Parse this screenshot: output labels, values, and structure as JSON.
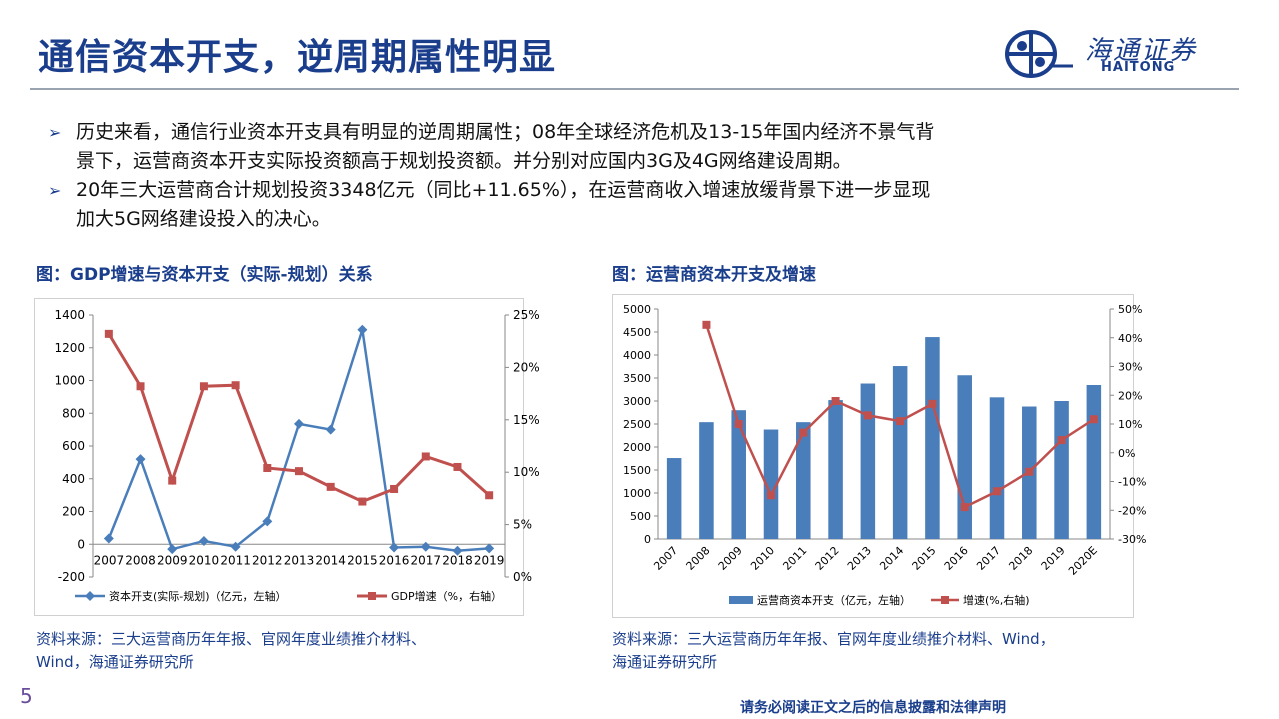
{
  "header": {
    "title": "通信资本开支，逆周期属性明显",
    "logo_cn": "海通证券",
    "logo_en": "HAITONG"
  },
  "bullets": [
    {
      "line1": "历史来看，通信行业资本开支具有明显的逆周期属性；08年全球经济危机及13-15年国内经济不景气背",
      "line2": "景下，运营商资本开支实际投资额高于规划投资额。并分别对应国内3G及4G网络建设周期。"
    },
    {
      "line1": "20年三大运营商合计规划投资3348亿元（同比+11.65%），在运营商收入增速放缓背景下进一步显现",
      "line2": "加大5G网络建设投入的决心。"
    }
  ],
  "figure_left": {
    "title": "图：GDP增速与资本开支（实际-规划）关系",
    "source_line1": "资料来源：三大运营商历年年报、官网年度业绩推介材料、",
    "source_line2": "Wind，海通证券研究所"
  },
  "figure_right": {
    "title": "图：运营商资本开支及增速",
    "source_line1": "资料来源：三大运营商历年年报、官网年度业绩推介材料、Wind，",
    "source_line2": "海通证券研究所"
  },
  "footer": {
    "page_number": "5",
    "disclaimer": "请务必阅读正文之后的信息披露和法律声明"
  },
  "colors": {
    "brand": "#1a3e8c",
    "blue_series": "#4a7ebb",
    "red_series": "#c0504d"
  },
  "chart_data": [
    {
      "type": "line",
      "x": [
        "2007",
        "2008",
        "2009",
        "2010",
        "2011",
        "2012",
        "2013",
        "2014",
        "2015",
        "2016",
        "2017",
        "2018",
        "2019"
      ],
      "series": [
        {
          "name": "资本开支(实际-规划)（亿元，左轴）",
          "axis": "left",
          "color": "#4a7ebb",
          "marker": "diamond",
          "values": [
            35,
            520,
            -30,
            20,
            -15,
            140,
            735,
            700,
            1310,
            -20,
            -15,
            -40,
            -25
          ]
        },
        {
          "name": "GDP增速（%，右轴）",
          "axis": "right",
          "color": "#c0504d",
          "marker": "square",
          "values": [
            23.2,
            18.2,
            9.2,
            18.2,
            18.3,
            10.4,
            10.1,
            8.6,
            7.2,
            8.4,
            11.5,
            10.5,
            7.8
          ]
        }
      ],
      "y_left": {
        "min": -200,
        "max": 1400,
        "ticks": [
          "-200",
          "0",
          "200",
          "400",
          "600",
          "800",
          "1000",
          "1200",
          "1400"
        ]
      },
      "y_right": {
        "min": 0,
        "max": 25,
        "ticks": [
          "0%",
          "5%",
          "10%",
          "15%",
          "20%",
          "25%"
        ]
      },
      "grid": false,
      "legend": "bottom"
    },
    {
      "type": "bar",
      "categories": [
        "2007",
        "2008",
        "2009",
        "2010",
        "2011",
        "2012",
        "2013",
        "2014",
        "2015",
        "2016",
        "2017",
        "2018",
        "2019",
        "2020E"
      ],
      "series": [
        {
          "name": "运营商资本开支（亿元，左轴）",
          "type": "bar",
          "axis": "left",
          "color": "#4a7ebb",
          "values": [
            1760,
            2540,
            2800,
            2380,
            2540,
            3020,
            3380,
            3760,
            4390,
            3560,
            3080,
            2880,
            3000,
            3348
          ]
        },
        {
          "name": "增速(%,右轴)",
          "type": "line",
          "axis": "right",
          "color": "#c0504d",
          "marker": "square",
          "values": [
            null,
            44.5,
            10.0,
            -14.8,
            7.0,
            18.0,
            13.0,
            11.0,
            17.0,
            -18.9,
            -13.4,
            -6.6,
            4.4,
            11.65
          ]
        }
      ],
      "y_left": {
        "min": 0,
        "max": 5000,
        "ticks": [
          "0",
          "500",
          "1000",
          "1500",
          "2000",
          "2500",
          "3000",
          "3500",
          "4000",
          "4500",
          "5000"
        ]
      },
      "y_right": {
        "min": -30,
        "max": 50,
        "ticks": [
          "-30%",
          "-20%",
          "-10%",
          "0%",
          "10%",
          "20%",
          "30%",
          "40%",
          "50%"
        ]
      },
      "grid": false,
      "legend": "bottom"
    }
  ]
}
